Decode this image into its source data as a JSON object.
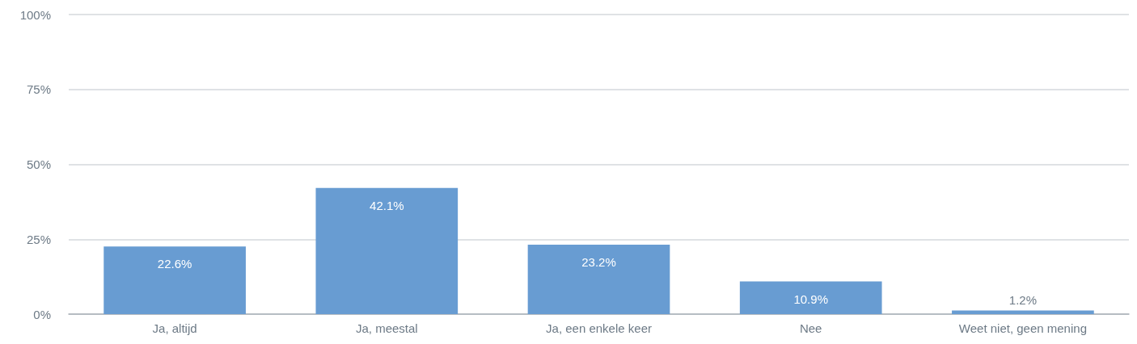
{
  "chart_data": {
    "type": "bar",
    "categories": [
      "Ja, altijd",
      "Ja, meestal",
      "Ja, een enkele keer",
      "Nee",
      "Weet niet, geen mening"
    ],
    "values": [
      22.6,
      42.1,
      23.2,
      10.9,
      1.2
    ],
    "value_labels": [
      "22.6%",
      "42.1%",
      "23.2%",
      "10.9%",
      "1.2%"
    ],
    "color": "#689cd2",
    "ylim": [
      0,
      100
    ],
    "yticks": [
      {
        "value": 0,
        "label": "0%"
      },
      {
        "value": 25,
        "label": "25%"
      },
      {
        "value": 50,
        "label": "50%"
      },
      {
        "value": 75,
        "label": "75%"
      },
      {
        "value": 100,
        "label": "100%"
      }
    ],
    "grid": "y"
  }
}
